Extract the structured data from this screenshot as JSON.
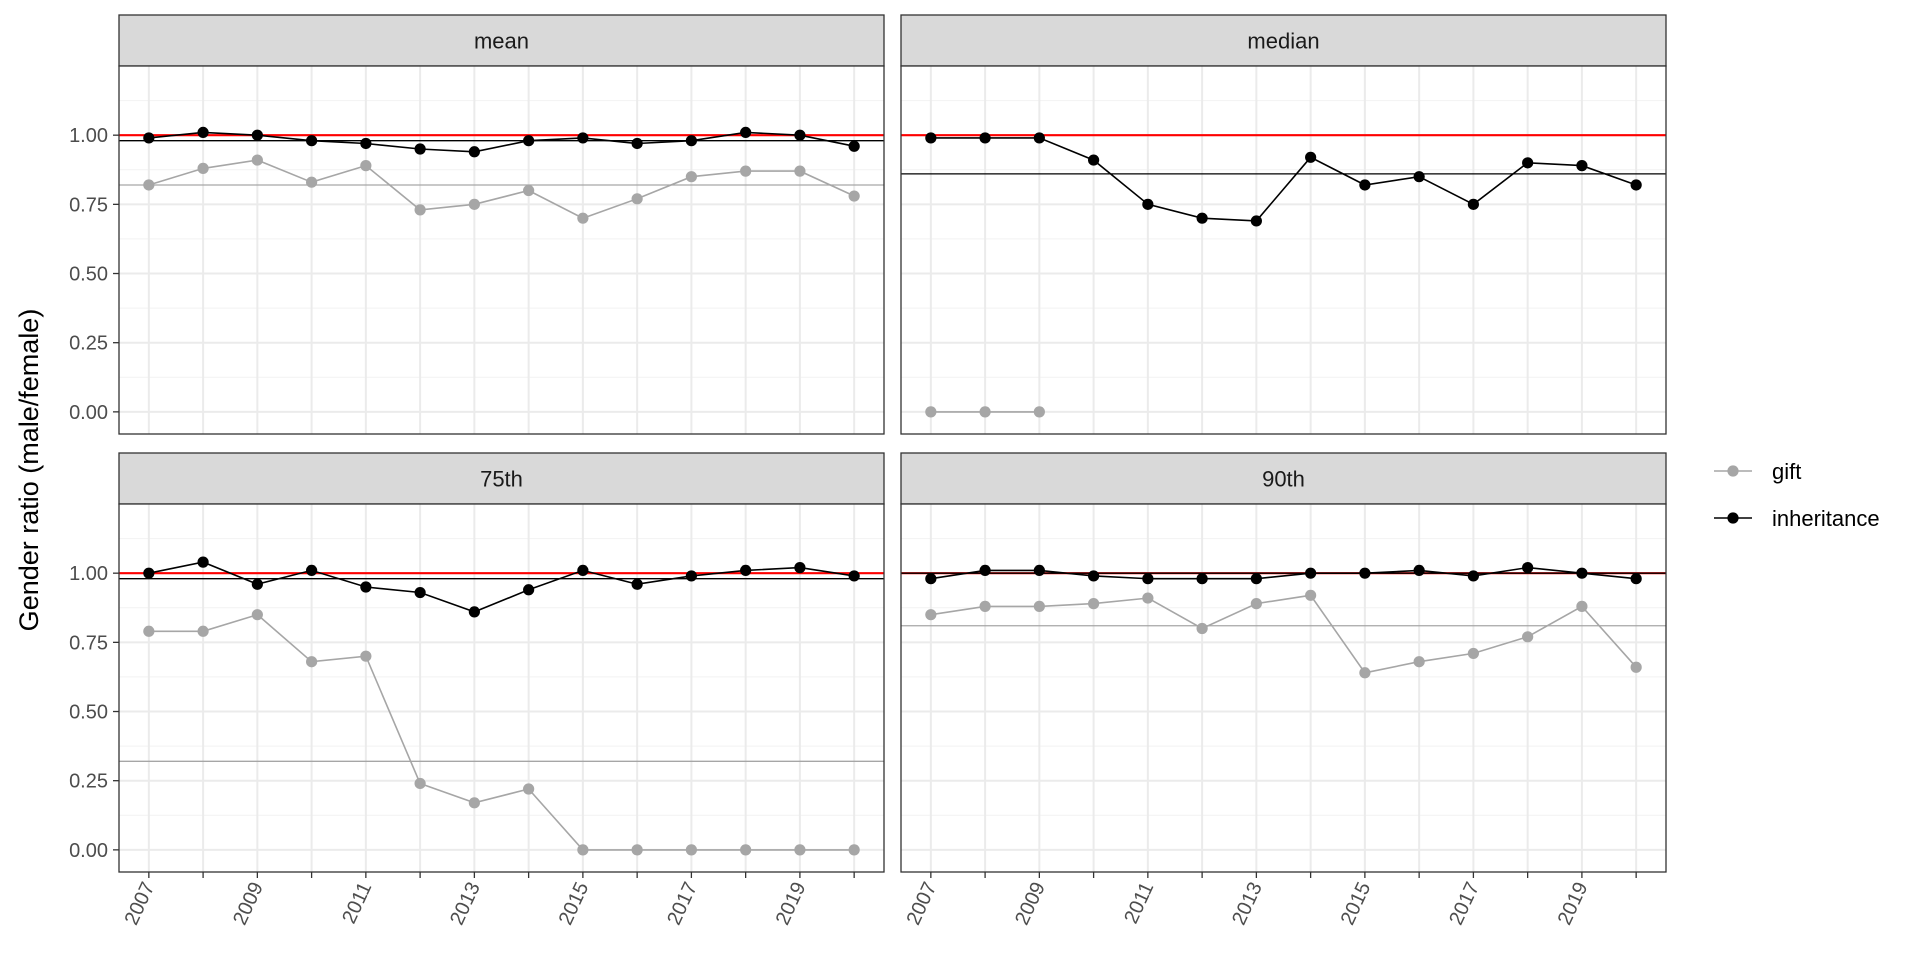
{
  "chart_data": {
    "type": "line",
    "ylabel": "Gender ratio (male/female)",
    "xlabel": "",
    "xlim": [
      2006.45,
      2020.55
    ],
    "ylim": [
      -0.08,
      1.25
    ],
    "x_ticks": [
      2007,
      2009,
      2011,
      2013,
      2015,
      2017,
      2019
    ],
    "y_ticks": [
      0.0,
      0.25,
      0.5,
      0.75,
      1.0
    ],
    "y_tick_labels": [
      "0.00",
      "0.25",
      "0.50",
      "0.75",
      "1.00"
    ],
    "reference_line": {
      "value": 1.0,
      "color": "#ff0000"
    },
    "legend": [
      {
        "name": "gift",
        "color": "#a6a6a6"
      },
      {
        "name": "inheritance",
        "color": "#000000"
      }
    ],
    "panels": [
      {
        "title": "mean",
        "series": [
          {
            "name": "gift",
            "color": "#a6a6a6",
            "x": [
              2007,
              2008,
              2009,
              2010,
              2011,
              2012,
              2013,
              2014,
              2015,
              2016,
              2017,
              2018,
              2019,
              2020
            ],
            "values": [
              0.82,
              0.88,
              0.91,
              0.83,
              0.89,
              0.73,
              0.75,
              0.8,
              0.7,
              0.77,
              0.85,
              0.87,
              0.87,
              0.78
            ]
          },
          {
            "name": "inheritance",
            "color": "#000000",
            "x": [
              2007,
              2008,
              2009,
              2010,
              2011,
              2012,
              2013,
              2014,
              2015,
              2016,
              2017,
              2018,
              2019,
              2020
            ],
            "values": [
              0.99,
              1.01,
              1.0,
              0.98,
              0.97,
              0.95,
              0.94,
              0.98,
              0.99,
              0.97,
              0.98,
              1.01,
              1.0,
              0.96
            ]
          }
        ],
        "hlines": [
          {
            "series": "gift",
            "value": 0.82,
            "color": "#a6a6a6"
          },
          {
            "series": "inheritance",
            "value": 0.98,
            "color": "#000000"
          }
        ]
      },
      {
        "title": "median",
        "series": [
          {
            "name": "gift",
            "color": "#a6a6a6",
            "x": [
              2007,
              2008,
              2009
            ],
            "values": [
              0.0,
              0.0,
              0.0
            ]
          },
          {
            "name": "inheritance",
            "color": "#000000",
            "x": [
              2007,
              2008,
              2009,
              2010,
              2011,
              2012,
              2013,
              2014,
              2015,
              2016,
              2017,
              2018,
              2019,
              2020
            ],
            "values": [
              0.99,
              0.99,
              0.99,
              0.91,
              0.75,
              0.7,
              0.69,
              0.92,
              0.82,
              0.85,
              0.75,
              0.9,
              0.89,
              0.82
            ]
          }
        ],
        "hlines": [
          {
            "series": "inheritance",
            "value": 0.86,
            "color": "#000000"
          }
        ]
      },
      {
        "title": "75th",
        "series": [
          {
            "name": "gift",
            "color": "#a6a6a6",
            "x": [
              2007,
              2008,
              2009,
              2010,
              2011,
              2012,
              2013,
              2014,
              2015,
              2016,
              2017,
              2018,
              2019,
              2020
            ],
            "values": [
              0.79,
              0.79,
              0.85,
              0.68,
              0.7,
              0.24,
              0.17,
              0.22,
              0.0,
              0.0,
              0.0,
              0.0,
              0.0,
              0.0
            ]
          },
          {
            "name": "inheritance",
            "color": "#000000",
            "x": [
              2007,
              2008,
              2009,
              2010,
              2011,
              2012,
              2013,
              2014,
              2015,
              2016,
              2017,
              2018,
              2019,
              2020
            ],
            "values": [
              1.0,
              1.04,
              0.96,
              1.01,
              0.95,
              0.93,
              0.86,
              0.94,
              1.01,
              0.96,
              0.99,
              1.01,
              1.02,
              0.99
            ]
          }
        ],
        "hlines": [
          {
            "series": "gift",
            "value": 0.32,
            "color": "#a6a6a6"
          },
          {
            "series": "inheritance",
            "value": 0.98,
            "color": "#000000"
          }
        ]
      },
      {
        "title": "90th",
        "series": [
          {
            "name": "gift",
            "color": "#a6a6a6",
            "x": [
              2007,
              2008,
              2009,
              2010,
              2011,
              2012,
              2013,
              2014,
              2015,
              2016,
              2017,
              2018,
              2019,
              2020
            ],
            "values": [
              0.85,
              0.88,
              0.88,
              0.89,
              0.91,
              0.8,
              0.89,
              0.92,
              0.64,
              0.68,
              0.71,
              0.77,
              0.88,
              0.66
            ]
          },
          {
            "name": "inheritance",
            "color": "#000000",
            "x": [
              2007,
              2008,
              2009,
              2010,
              2011,
              2012,
              2013,
              2014,
              2015,
              2016,
              2017,
              2018,
              2019,
              2020
            ],
            "values": [
              0.98,
              1.01,
              1.01,
              0.99,
              0.98,
              0.98,
              0.98,
              1.0,
              1.0,
              1.01,
              0.99,
              1.02,
              1.0,
              0.98
            ]
          }
        ],
        "hlines": [
          {
            "series": "gift",
            "value": 0.81,
            "color": "#a6a6a6"
          },
          {
            "series": "inheritance",
            "value": 1.0,
            "color": "#000000"
          }
        ]
      }
    ]
  }
}
